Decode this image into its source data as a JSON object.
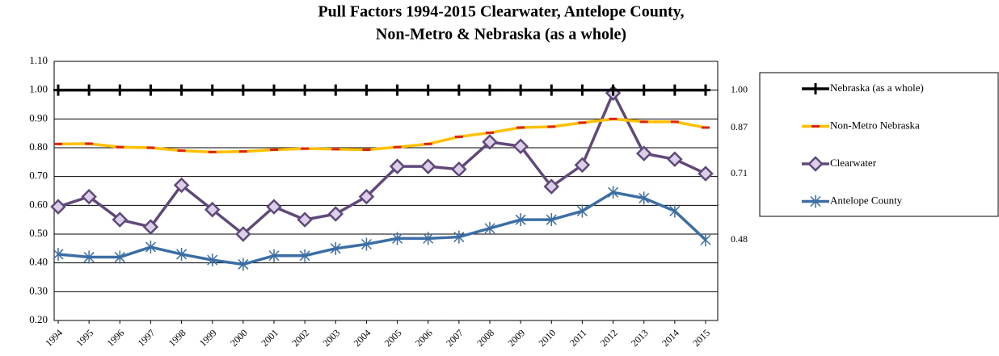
{
  "chart_data": {
    "type": "line",
    "title": [
      "Pull Factors 1994-2015 Clearwater, Antelope County,",
      "Non-Metro & Nebraska (as a whole)"
    ],
    "categories": [
      "1994",
      "1995",
      "1996",
      "1997",
      "1998",
      "1999",
      "2000",
      "2001",
      "2002",
      "2003",
      "2004",
      "2005",
      "2006",
      "2007",
      "2008",
      "2009",
      "2010",
      "2011",
      "2012",
      "2013",
      "2014",
      "2015"
    ],
    "ylim": [
      0.2,
      1.1
    ],
    "yticks": [
      {
        "value": 0.2,
        "label": "0.20"
      },
      {
        "value": 0.3,
        "label": "0.30"
      },
      {
        "value": 0.4,
        "label": "0.40"
      },
      {
        "value": 0.5,
        "label": "0.50"
      },
      {
        "value": 0.6,
        "label": "0.60"
      },
      {
        "value": 0.7,
        "label": "0.70"
      },
      {
        "value": 0.8,
        "label": "0.80"
      },
      {
        "value": 0.9,
        "label": "0.90"
      },
      {
        "value": 1.0,
        "label": "1.00"
      },
      {
        "value": 1.1,
        "label": "1.10"
      }
    ],
    "grid": true,
    "legend": "right",
    "series": [
      {
        "name": "Nebraska (as a whole)",
        "color": "#000000",
        "marker": "plus",
        "values": [
          1,
          1,
          1,
          1,
          1,
          1,
          1,
          1,
          1,
          1,
          1,
          1,
          1,
          1,
          1,
          1,
          1,
          1,
          1,
          1,
          1,
          1
        ],
        "value_labels": [
          null,
          null,
          null,
          null,
          null,
          null,
          null,
          null,
          null,
          null,
          null,
          null,
          null,
          null,
          null,
          null,
          null,
          null,
          null,
          null,
          null,
          "1.00"
        ]
      },
      {
        "name": "Non-Metro Nebraska",
        "color": "#ffc000",
        "marker_color": "#e0201b",
        "marker": "dash",
        "values": [
          0.813,
          0.814,
          0.802,
          0.8,
          0.79,
          0.785,
          0.787,
          0.793,
          0.797,
          0.795,
          0.793,
          0.802,
          0.813,
          0.838,
          0.852,
          0.87,
          0.873,
          0.887,
          0.9,
          0.89,
          0.89,
          0.87
        ],
        "value_labels": [
          null,
          null,
          null,
          null,
          null,
          null,
          null,
          null,
          null,
          null,
          null,
          null,
          null,
          null,
          null,
          null,
          null,
          null,
          null,
          null,
          null,
          "0.87"
        ]
      },
      {
        "name": "Clearwater",
        "color": "#60497a",
        "marker_color": "#dcd0e8",
        "marker": "diamond",
        "values": [
          0.595,
          0.63,
          0.55,
          0.525,
          0.67,
          0.585,
          0.5,
          0.595,
          0.55,
          0.57,
          0.63,
          0.735,
          0.735,
          0.725,
          0.82,
          0.805,
          0.665,
          0.74,
          0.99,
          0.78,
          0.76,
          0.71
        ],
        "value_labels": [
          null,
          null,
          null,
          null,
          null,
          null,
          null,
          null,
          null,
          null,
          null,
          null,
          null,
          null,
          null,
          null,
          null,
          null,
          null,
          null,
          null,
          "0.71"
        ]
      },
      {
        "name": "Antelope County",
        "color": "#3b6ea5",
        "marker": "star",
        "values": [
          0.43,
          0.42,
          0.42,
          0.455,
          0.43,
          0.41,
          0.395,
          0.425,
          0.425,
          0.45,
          0.465,
          0.485,
          0.485,
          0.49,
          0.52,
          0.55,
          0.55,
          0.58,
          0.645,
          0.625,
          0.58,
          0.48
        ],
        "value_labels": [
          null,
          null,
          null,
          null,
          null,
          null,
          null,
          null,
          null,
          null,
          null,
          null,
          null,
          null,
          null,
          null,
          null,
          null,
          null,
          null,
          null,
          "0.48"
        ]
      }
    ]
  }
}
